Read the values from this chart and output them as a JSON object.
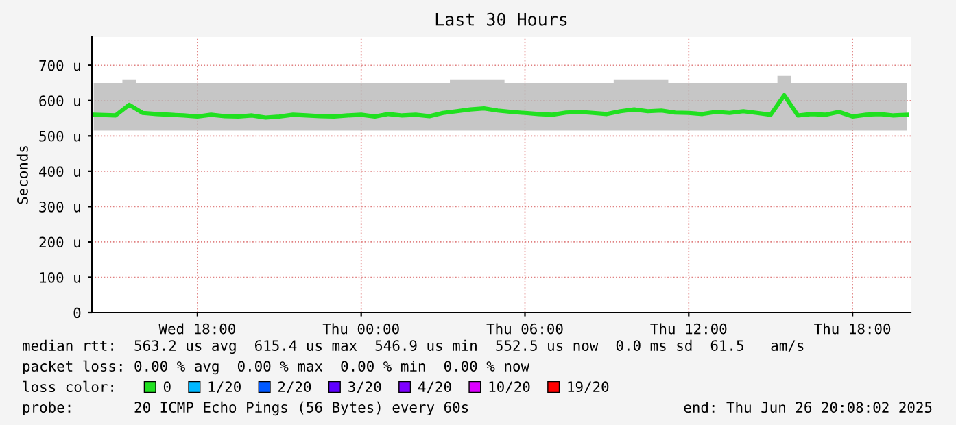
{
  "chart_data": {
    "type": "line",
    "title": "Last 30 Hours",
    "ylabel": "Seconds",
    "x": [
      "2025-06-25T14:12",
      "2025-06-25T15:00",
      "2025-06-25T15:30",
      "2025-06-25T16:00",
      "2025-06-25T16:30",
      "2025-06-25T17:00",
      "2025-06-25T17:30",
      "2025-06-25T18:00",
      "2025-06-25T18:30",
      "2025-06-25T19:00",
      "2025-06-25T19:30",
      "2025-06-25T20:00",
      "2025-06-25T20:30",
      "2025-06-25T21:00",
      "2025-06-25T21:30",
      "2025-06-25T22:00",
      "2025-06-25T22:30",
      "2025-06-25T23:00",
      "2025-06-25T23:30",
      "2025-06-26T00:00",
      "2025-06-26T00:30",
      "2025-06-26T01:00",
      "2025-06-26T01:30",
      "2025-06-26T02:00",
      "2025-06-26T02:30",
      "2025-06-26T03:00",
      "2025-06-26T03:30",
      "2025-06-26T04:00",
      "2025-06-26T04:30",
      "2025-06-26T05:00",
      "2025-06-26T05:30",
      "2025-06-26T06:00",
      "2025-06-26T06:30",
      "2025-06-26T07:00",
      "2025-06-26T07:30",
      "2025-06-26T08:00",
      "2025-06-26T08:30",
      "2025-06-26T09:00",
      "2025-06-26T09:30",
      "2025-06-26T10:00",
      "2025-06-26T10:30",
      "2025-06-26T11:00",
      "2025-06-26T11:30",
      "2025-06-26T12:00",
      "2025-06-26T12:30",
      "2025-06-26T13:00",
      "2025-06-26T13:30",
      "2025-06-26T14:00",
      "2025-06-26T14:30",
      "2025-06-26T15:00",
      "2025-06-26T15:30",
      "2025-06-26T16:00",
      "2025-06-26T16:30",
      "2025-06-26T17:00",
      "2025-06-26T17:30",
      "2025-06-26T18:00",
      "2025-06-26T18:30",
      "2025-06-26T19:00",
      "2025-06-26T19:30",
      "2025-06-26T20:00"
    ],
    "series": [
      {
        "name": "0",
        "color": "#20e020",
        "values": [
          560,
          558,
          588,
          565,
          562,
          560,
          558,
          555,
          560,
          556,
          555,
          558,
          552,
          555,
          560,
          558,
          556,
          555,
          558,
          560,
          555,
          562,
          558,
          560,
          556,
          565,
          570,
          575,
          578,
          572,
          568,
          565,
          562,
          560,
          566,
          568,
          565,
          562,
          570,
          575,
          570,
          572,
          566,
          565,
          562,
          568,
          565,
          570,
          565,
          560,
          615,
          558,
          562,
          560,
          568,
          555,
          560,
          562,
          558,
          560
        ],
        "lower": [
          515,
          515,
          515,
          515,
          515,
          515,
          515,
          515,
          515,
          515,
          515,
          515,
          515,
          515,
          515,
          515,
          515,
          515,
          515,
          515,
          515,
          515,
          515,
          515,
          515,
          515,
          515,
          515,
          515,
          515,
          515,
          515,
          515,
          515,
          515,
          515,
          515,
          515,
          515,
          515,
          515,
          515,
          515,
          515,
          515,
          515,
          515,
          515,
          515,
          515,
          515,
          515,
          515,
          515,
          515,
          515,
          515,
          515,
          515,
          515
        ],
        "upper": [
          650,
          650,
          660,
          650,
          650,
          650,
          650,
          650,
          650,
          650,
          650,
          650,
          650,
          650,
          650,
          650,
          650,
          650,
          650,
          650,
          650,
          650,
          650,
          650,
          650,
          650,
          660,
          660,
          660,
          660,
          650,
          650,
          650,
          650,
          650,
          650,
          650,
          650,
          660,
          660,
          660,
          660,
          650,
          650,
          650,
          650,
          650,
          650,
          650,
          650,
          670,
          650,
          650,
          650,
          650,
          650,
          650,
          650,
          650,
          650
        ]
      },
      {
        "name": "1/20",
        "color": "#00b8ff",
        "values": [
          null,
          null,
          null,
          null,
          null,
          null,
          null,
          null,
          null,
          null,
          null,
          null,
          null,
          null,
          null,
          null,
          null,
          null,
          null,
          null,
          null,
          null,
          null,
          null,
          null,
          null,
          null,
          null,
          null,
          null,
          null,
          null,
          null,
          null,
          null,
          null,
          null,
          null,
          null,
          null,
          null,
          null,
          null,
          null,
          null,
          null,
          null,
          null,
          null,
          null,
          null,
          null,
          null,
          null,
          null,
          null,
          null,
          null,
          null,
          null
        ]
      },
      {
        "name": "2/20",
        "color": "#0059ff",
        "values": [
          null,
          null,
          null,
          null,
          null,
          null,
          null,
          null,
          null,
          null,
          null,
          null,
          null,
          null,
          null,
          null,
          null,
          null,
          null,
          null,
          null,
          null,
          null,
          null,
          null,
          null,
          null,
          null,
          null,
          null,
          null,
          null,
          null,
          null,
          null,
          null,
          null,
          null,
          null,
          null,
          null,
          null,
          null,
          null,
          null,
          null,
          null,
          null,
          null,
          null,
          null,
          null,
          null,
          null,
          null,
          null,
          null,
          null,
          null,
          null
        ]
      },
      {
        "name": "3/20",
        "color": "#5e00ff",
        "values": [
          null,
          null,
          null,
          null,
          null,
          null,
          null,
          null,
          null,
          null,
          null,
          null,
          null,
          null,
          null,
          null,
          null,
          null,
          null,
          null,
          null,
          null,
          null,
          null,
          null,
          null,
          null,
          null,
          null,
          null,
          null,
          null,
          null,
          null,
          null,
          null,
          null,
          null,
          null,
          null,
          null,
          null,
          null,
          null,
          null,
          null,
          null,
          null,
          null,
          null,
          null,
          null,
          null,
          null,
          null,
          null,
          null,
          null,
          null,
          null
        ]
      },
      {
        "name": "4/20",
        "color": "#7e00ff",
        "values": [
          null,
          null,
          null,
          null,
          null,
          null,
          null,
          null,
          null,
          null,
          null,
          null,
          null,
          null,
          null,
          null,
          null,
          null,
          null,
          null,
          null,
          null,
          null,
          null,
          null,
          null,
          null,
          null,
          null,
          null,
          null,
          null,
          null,
          null,
          null,
          null,
          null,
          null,
          null,
          null,
          null,
          null,
          null,
          null,
          null,
          null,
          null,
          null,
          null,
          null,
          null,
          null,
          null,
          null,
          null,
          null,
          null,
          null,
          null,
          null
        ]
      },
      {
        "name": "10/20",
        "color": "#dd00ff",
        "values": [
          null,
          null,
          null,
          null,
          null,
          null,
          null,
          null,
          null,
          null,
          null,
          null,
          null,
          null,
          null,
          null,
          null,
          null,
          null,
          null,
          null,
          null,
          null,
          null,
          null,
          null,
          null,
          null,
          null,
          null,
          null,
          null,
          null,
          null,
          null,
          null,
          null,
          null,
          null,
          null,
          null,
          null,
          null,
          null,
          null,
          null,
          null,
          null,
          null,
          null,
          null,
          null,
          null,
          null,
          null,
          null,
          null,
          null,
          null,
          null
        ]
      },
      {
        "name": "19/20",
        "color": "#ff0000",
        "values": [
          null,
          null,
          null,
          null,
          null,
          null,
          null,
          null,
          null,
          null,
          null,
          null,
          null,
          null,
          null,
          null,
          null,
          null,
          null,
          null,
          null,
          null,
          null,
          null,
          null,
          null,
          null,
          null,
          null,
          null,
          null,
          null,
          null,
          null,
          null,
          null,
          null,
          null,
          null,
          null,
          null,
          null,
          null,
          null,
          null,
          null,
          null,
          null,
          null,
          null,
          null,
          null,
          null,
          null,
          null,
          null,
          null,
          null,
          null,
          null
        ]
      }
    ],
    "xlim": [
      "2025-06-25T14:08",
      "2025-06-26T20:08"
    ],
    "xticks": [
      {
        "value": "2025-06-25T18:00",
        "label": "Wed 18:00"
      },
      {
        "value": "2025-06-26T00:00",
        "label": "Thu 00:00"
      },
      {
        "value": "2025-06-26T06:00",
        "label": "Thu 06:00"
      },
      {
        "value": "2025-06-26T12:00",
        "label": "Thu 12:00"
      },
      {
        "value": "2025-06-26T18:00",
        "label": "Thu 18:00"
      }
    ],
    "ylim": [
      0,
      780
    ],
    "yticks": [
      0,
      {
        "value": 100,
        "label": "100 u"
      },
      {
        "value": 200,
        "label": "200 u"
      },
      {
        "value": 300,
        "label": "300 u"
      },
      {
        "value": 400,
        "label": "400 u"
      },
      {
        "value": 500,
        "label": "500 u"
      },
      {
        "value": 600,
        "label": "600 u"
      },
      {
        "value": 700,
        "label": "700 u"
      }
    ],
    "grid": true,
    "legend": "bottom",
    "legend_title": "loss color:",
    "line_style": "solid",
    "marker": "none",
    "annotations": [
      "median rtt:  563.2 us avg  615.4 us max  546.9 us min  552.5 us now  0.0 ms sd  61.5   am/s",
      "packet loss: 0.00 % avg  0.00 % max  0.00 % min  0.00 % now",
      "probe:       20 ICMP Echo Pings (56 Bytes) every 60s",
      "end: Thu Jun 26 20:08:02 2025"
    ]
  }
}
